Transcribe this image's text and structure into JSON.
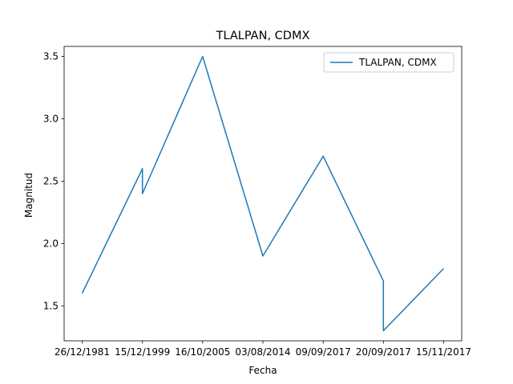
{
  "chart_data": {
    "type": "line",
    "title": "TLALPAN, CDMX",
    "xlabel": "Fecha",
    "ylabel": "Magnitud",
    "categories": [
      "26/12/1981",
      "15/12/1999",
      "15/12/1999",
      "16/10/2005",
      "03/08/2014",
      "09/09/2017",
      "20/09/2017",
      "20/09/2017",
      "15/11/2017"
    ],
    "x_tick_labels": [
      "26/12/1981",
      "15/12/1999",
      "16/10/2005",
      "03/08/2014",
      "09/09/2017",
      "20/09/2017",
      "15/11/2017"
    ],
    "y_ticks": [
      "1.5",
      "2.0",
      "2.5",
      "3.0",
      "3.5"
    ],
    "ylim": [
      1.22,
      3.58
    ],
    "series": [
      {
        "name": "TLALPAN, CDMX",
        "x_positions": [
          0,
          1,
          1,
          2,
          3,
          4,
          5,
          5,
          6
        ],
        "values": [
          1.6,
          2.6,
          2.4,
          3.5,
          1.9,
          2.7,
          1.7,
          1.3,
          1.8
        ],
        "color": "#1f77b4"
      }
    ],
    "legend": "top-right",
    "grid": false
  }
}
